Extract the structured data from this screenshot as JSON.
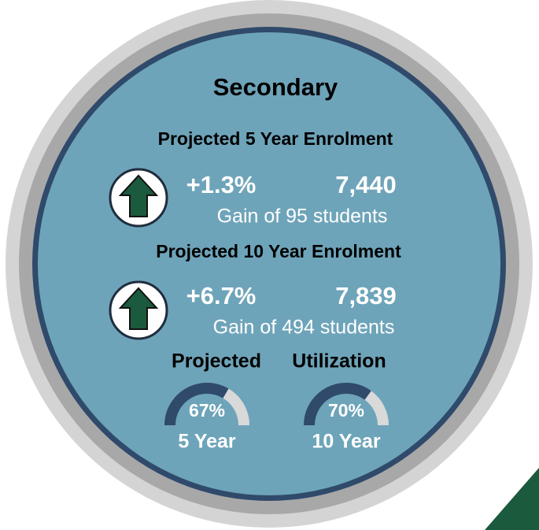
{
  "title": "Secondary",
  "enrolment": [
    {
      "heading": "Projected 5 Year Enrolment",
      "change": "+1.3%",
      "total": "7,440",
      "gain": "Gain of 95 students"
    },
    {
      "heading": "Projected 10 Year Enrolment",
      "change": "+6.7%",
      "total": "7,839",
      "gain": "Gain of 494 students"
    }
  ],
  "utilization": {
    "heading_left": "Projected",
    "heading_right": "Utilization",
    "gauges": [
      {
        "value": 67,
        "value_label": "67%",
        "label": "5 Year"
      },
      {
        "value": 70,
        "value_label": "70%",
        "label": "10 Year"
      }
    ]
  }
}
